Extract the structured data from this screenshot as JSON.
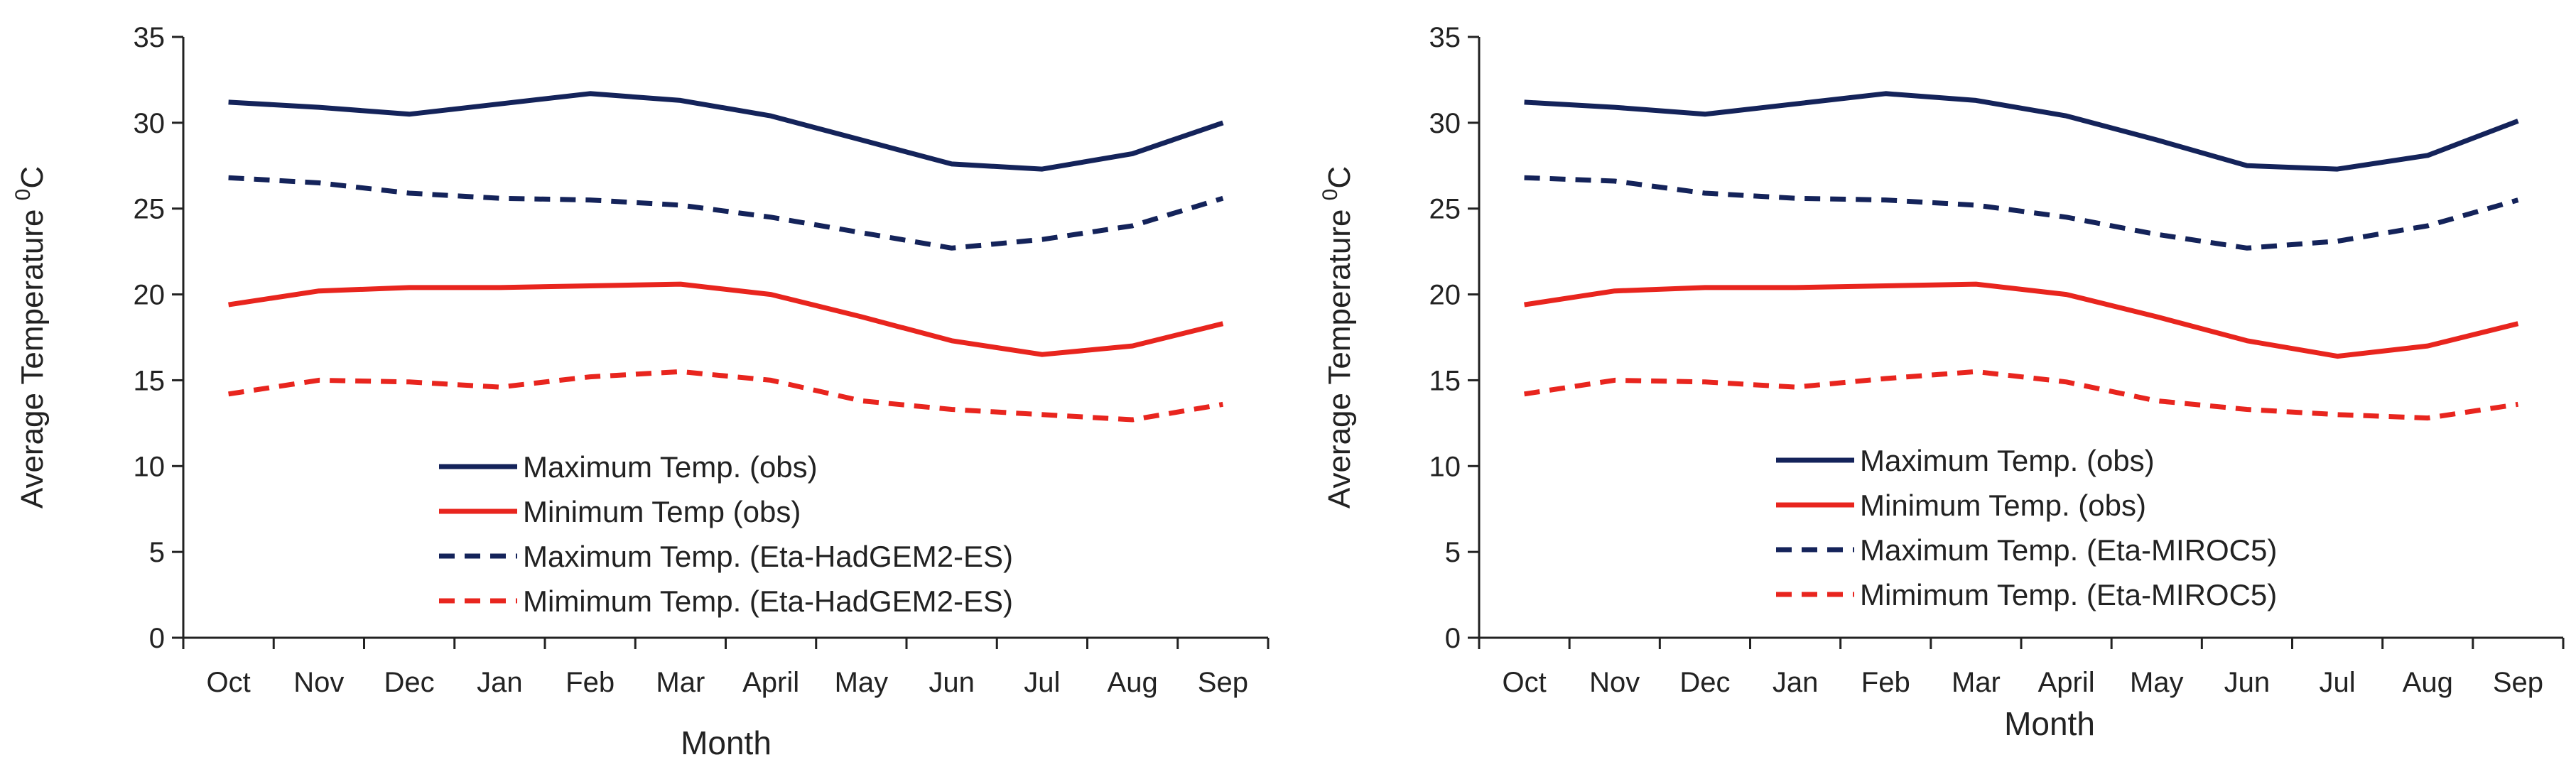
{
  "chart_data": [
    {
      "type": "line",
      "title": "",
      "xlabel": "Month",
      "ylabel_main": "Average Temperature ",
      "ylabel_sup": "0",
      "ylabel_unit": "C",
      "ylim": [
        0,
        35
      ],
      "yticks": [
        0,
        5,
        10,
        15,
        20,
        25,
        30,
        35
      ],
      "categories": [
        "Oct",
        "Nov",
        "Dec",
        "Jan",
        "Feb",
        "Mar",
        "April",
        "May",
        "Jun",
        "Jul",
        "Aug",
        "Sep"
      ],
      "legend_position": "bottom-center",
      "series": [
        {
          "name": "Maximum Temp.  (obs)",
          "color": "#14235a",
          "style": "solid",
          "values": [
            31.2,
            30.9,
            30.5,
            31.1,
            31.7,
            31.3,
            30.4,
            29.0,
            27.6,
            27.3,
            28.2,
            30.0
          ]
        },
        {
          "name": "Minimum Temp (obs)",
          "color": "#e8251e",
          "style": "solid",
          "values": [
            19.4,
            20.2,
            20.4,
            20.4,
            20.5,
            20.6,
            20.0,
            18.7,
            17.3,
            16.5,
            17.0,
            18.3
          ]
        },
        {
          "name": "Maximum Temp. (Eta-HadGEM2-ES)",
          "color": "#14235a",
          "style": "dashed",
          "values": [
            26.8,
            26.5,
            25.9,
            25.6,
            25.5,
            25.2,
            24.5,
            23.6,
            22.7,
            23.2,
            24.0,
            25.6
          ]
        },
        {
          "name": "Mimimum Temp. (Eta-HadGEM2-ES)",
          "color": "#e8251e",
          "style": "dashed",
          "values": [
            14.2,
            15.0,
            14.9,
            14.6,
            15.2,
            15.5,
            15.0,
            13.8,
            13.3,
            13.0,
            12.7,
            13.6
          ]
        }
      ]
    },
    {
      "type": "line",
      "title": "",
      "xlabel": "Month",
      "ylabel_main": "Average Temperature ",
      "ylabel_sup": "0",
      "ylabel_unit": "C",
      "ylim": [
        0,
        35
      ],
      "yticks": [
        0,
        5,
        10,
        15,
        20,
        25,
        30,
        35
      ],
      "categories": [
        "Oct",
        "Nov",
        "Dec",
        "Jan",
        "Feb",
        "Mar",
        "April",
        "May",
        "Jun",
        "Jul",
        "Aug",
        "Sep"
      ],
      "legend_position": "bottom-center",
      "series": [
        {
          "name": "Maximum Temp.  (obs)",
          "color": "#14235a",
          "style": "solid",
          "values": [
            31.2,
            30.9,
            30.5,
            31.1,
            31.7,
            31.3,
            30.4,
            29.0,
            27.5,
            27.3,
            28.1,
            30.1
          ]
        },
        {
          "name": "Minimum Temp. (obs)",
          "color": "#e8251e",
          "style": "solid",
          "values": [
            19.4,
            20.2,
            20.4,
            20.4,
            20.5,
            20.6,
            20.0,
            18.7,
            17.3,
            16.4,
            17.0,
            18.3
          ]
        },
        {
          "name": "Maximum Temp. (Eta-MIROC5)",
          "color": "#14235a",
          "style": "dashed",
          "values": [
            26.8,
            26.6,
            25.9,
            25.6,
            25.5,
            25.2,
            24.5,
            23.5,
            22.7,
            23.1,
            24.0,
            25.5
          ]
        },
        {
          "name": "Mimimum Temp. (Eta-MIROC5)",
          "color": "#e8251e",
          "style": "dashed",
          "values": [
            14.2,
            15.0,
            14.9,
            14.6,
            15.1,
            15.5,
            14.9,
            13.8,
            13.3,
            13.0,
            12.8,
            13.6
          ]
        }
      ]
    }
  ]
}
